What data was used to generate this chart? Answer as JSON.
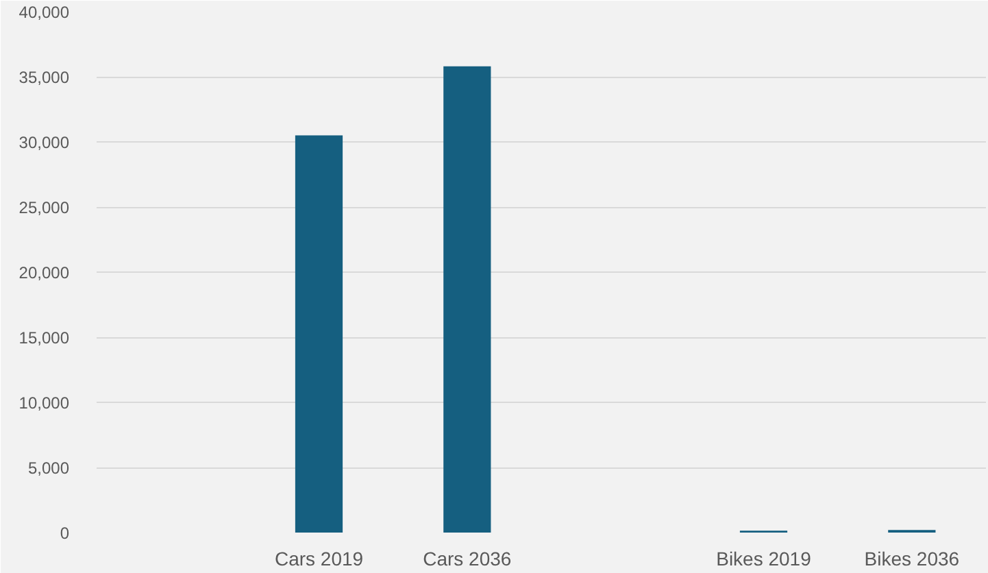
{
  "chart_data": {
    "type": "bar",
    "categories": [
      null,
      "Cars 2019",
      "Cars 2036",
      null,
      "Bikes 2019",
      "Bikes 2036"
    ],
    "values": [
      null,
      30500,
      35800,
      null,
      150,
      200
    ],
    "color": "#155f80",
    "ylim": [
      0,
      40000
    ],
    "yticks": [
      {
        "value": 0,
        "label": "0"
      },
      {
        "value": 5000,
        "label": "5,000"
      },
      {
        "value": 10000,
        "label": "10,000"
      },
      {
        "value": 15000,
        "label": "15,000"
      },
      {
        "value": 20000,
        "label": "20,000"
      },
      {
        "value": 25000,
        "label": "25,000"
      },
      {
        "value": 30000,
        "label": "30,000"
      },
      {
        "value": 35000,
        "label": "35,000"
      },
      {
        "value": 40000,
        "label": "40,000"
      }
    ],
    "grid": "y"
  }
}
